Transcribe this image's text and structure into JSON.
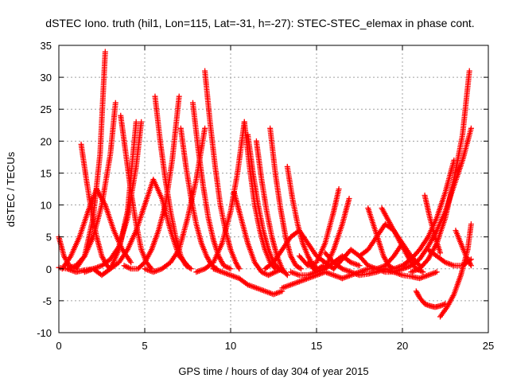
{
  "chart_data": {
    "type": "scatter",
    "title": "dSTEC Iono. truth (hil1, Lon=115, Lat=-31, h=-27): STEC-STEC_elemax in phase cont.",
    "xlabel": "GPS time / hours of day 304 of year 2015",
    "ylabel": "dSTEC  / TECUs",
    "xlim": [
      0,
      25
    ],
    "ylim": [
      -10,
      35
    ],
    "xticks": [
      0,
      5,
      10,
      15,
      20,
      25
    ],
    "yticks": [
      -10,
      -5,
      0,
      5,
      10,
      15,
      20,
      25,
      30,
      35
    ],
    "grid": true,
    "marker": "+",
    "color": "#ff0000",
    "series": [
      {
        "x": [
          0.0,
          0.3,
          0.6,
          1.0,
          1.5,
          2.0,
          2.4,
          2.7
        ],
        "y": [
          5.0,
          2.0,
          0.5,
          0.0,
          2.0,
          8.0,
          18.0,
          34.0
        ]
      },
      {
        "x": [
          0.0,
          0.5,
          1.0,
          1.5,
          2.0,
          2.5,
          3.0,
          3.3
        ],
        "y": [
          0.2,
          0.0,
          0.5,
          2.0,
          5.0,
          10.0,
          18.0,
          26.0
        ]
      },
      {
        "x": [
          0.2,
          0.7,
          1.2,
          1.7,
          2.2,
          2.7,
          3.2,
          3.7,
          4.2
        ],
        "y": [
          0.0,
          2.0,
          5.0,
          9.0,
          12.5,
          10.0,
          6.0,
          3.0,
          1.0
        ]
      },
      {
        "x": [
          1.3,
          1.6,
          1.9,
          2.2,
          2.5,
          2.8,
          3.0
        ],
        "y": [
          19.5,
          14.0,
          9.0,
          5.0,
          2.0,
          0.5,
          0.0
        ]
      },
      {
        "x": [
          0.5,
          1.0,
          1.5,
          2.0,
          2.5,
          3.0,
          3.5,
          4.0,
          4.5
        ],
        "y": [
          0.0,
          -0.5,
          -0.2,
          0.0,
          -1.0,
          0.0,
          3.0,
          9.0,
          23.0
        ]
      },
      {
        "x": [
          1.5,
          2.0,
          2.5,
          3.0,
          3.5,
          4.0,
          4.5,
          4.8
        ],
        "y": [
          -0.5,
          0.0,
          0.5,
          1.5,
          3.5,
          8.0,
          16.0,
          23.0
        ]
      },
      {
        "x": [
          3.6,
          3.9,
          4.2,
          4.5,
          4.8,
          5.1,
          5.4
        ],
        "y": [
          24.0,
          18.0,
          12.0,
          7.0,
          3.0,
          1.0,
          0.0
        ]
      },
      {
        "x": [
          3.8,
          4.2,
          4.6,
          5.0,
          5.4,
          5.8,
          6.2,
          6.6,
          7.0
        ],
        "y": [
          0.5,
          0.0,
          0.0,
          1.0,
          3.0,
          6.0,
          10.0,
          17.0,
          27.0
        ]
      },
      {
        "x": [
          3.0,
          3.5,
          4.0,
          4.5,
          5.0,
          5.5,
          6.0,
          6.5,
          7.0,
          7.5
        ],
        "y": [
          0.0,
          1.0,
          3.0,
          6.0,
          10.0,
          14.0,
          11.0,
          6.0,
          2.0,
          0.5
        ]
      },
      {
        "x": [
          5.6,
          5.9,
          6.2,
          6.5,
          6.8,
          7.1,
          7.4,
          7.7
        ],
        "y": [
          27.0,
          20.0,
          14.0,
          9.0,
          5.0,
          2.0,
          0.5,
          0.0
        ]
      },
      {
        "x": [
          5.0,
          5.5,
          6.0,
          6.5,
          7.0,
          7.5,
          8.0,
          8.5
        ],
        "y": [
          0.0,
          -0.5,
          0.0,
          1.0,
          3.0,
          8.0,
          14.0,
          22.0
        ]
      },
      {
        "x": [
          7.1,
          7.4,
          7.7,
          8.0,
          8.3,
          8.6,
          8.9,
          9.2
        ],
        "y": [
          22.0,
          16.0,
          11.0,
          7.0,
          4.0,
          2.0,
          0.5,
          0.0
        ]
      },
      {
        "x": [
          7.8,
          8.1,
          8.4,
          8.7,
          9.0,
          9.3,
          9.6,
          10.0
        ],
        "y": [
          26.0,
          19.0,
          13.0,
          8.0,
          4.5,
          2.0,
          0.5,
          0.0
        ]
      },
      {
        "x": [
          8.5,
          8.8,
          9.1,
          9.4,
          9.7,
          10.0,
          10.3,
          10.5
        ],
        "y": [
          31.0,
          23.0,
          16.0,
          10.0,
          6.0,
          3.0,
          1.0,
          0.0
        ]
      },
      {
        "x": [
          8.0,
          8.5,
          9.0,
          9.5,
          10.0,
          10.4,
          10.8
        ],
        "y": [
          -0.5,
          0.0,
          1.0,
          4.0,
          9.0,
          15.0,
          23.0
        ]
      },
      {
        "x": [
          10.8,
          11.1,
          11.4,
          11.7,
          12.0,
          12.3,
          12.6
        ],
        "y": [
          23.0,
          16.0,
          10.0,
          6.0,
          3.0,
          1.0,
          0.0
        ]
      },
      {
        "x": [
          10.2,
          10.6,
          11.0,
          11.4,
          11.8,
          12.2,
          12.6,
          13.0
        ],
        "y": [
          12.0,
          8.0,
          4.0,
          1.0,
          -0.5,
          -1.0,
          -0.5,
          0.0
        ]
      },
      {
        "x": [
          11.0,
          11.3,
          11.6,
          11.9,
          12.2,
          12.5,
          12.8,
          13.1
        ],
        "y": [
          21.0,
          15.0,
          10.0,
          6.0,
          3.0,
          1.0,
          0.0,
          -0.5
        ]
      },
      {
        "x": [
          9.0,
          9.5,
          10.0,
          10.5,
          11.0,
          11.5,
          12.0,
          12.5,
          13.0
        ],
        "y": [
          0.0,
          -0.5,
          -1.0,
          -1.5,
          -2.5,
          -3.0,
          -3.5,
          -4.0,
          -3.5
        ]
      },
      {
        "x": [
          12.3,
          12.6,
          12.9,
          13.2,
          13.5,
          13.8,
          14.1
        ],
        "y": [
          22.0,
          15.0,
          9.5,
          5.0,
          2.0,
          0.5,
          0.0
        ]
      },
      {
        "x": [
          11.5,
          11.8,
          12.1,
          12.4,
          12.7,
          13.0,
          13.3
        ],
        "y": [
          20.0,
          14.0,
          9.0,
          5.0,
          2.0,
          0.0,
          -1.0
        ]
      },
      {
        "x": [
          13.0,
          13.5,
          14.0,
          14.5,
          15.0,
          15.5,
          16.0,
          16.5
        ],
        "y": [
          -3.0,
          -2.5,
          -2.0,
          -1.5,
          -1.0,
          -0.5,
          -1.0,
          -1.5
        ]
      },
      {
        "x": [
          12.0,
          12.5,
          13.0,
          13.5,
          14.0,
          14.5,
          15.0,
          15.5,
          16.0
        ],
        "y": [
          0.0,
          1.0,
          3.0,
          5.0,
          6.0,
          4.0,
          2.0,
          1.0,
          0.0
        ]
      },
      {
        "x": [
          13.3,
          13.6,
          13.9,
          14.2,
          14.5,
          14.8,
          15.1,
          15.4
        ],
        "y": [
          16.0,
          11.0,
          7.0,
          4.0,
          2.0,
          0.5,
          0.0,
          0.5
        ]
      },
      {
        "x": [
          14.0,
          14.5,
          15.0,
          15.5,
          16.0,
          16.3
        ],
        "y": [
          2.0,
          0.5,
          1.0,
          4.0,
          9.0,
          12.5
        ]
      },
      {
        "x": [
          14.5,
          15.0,
          15.5,
          16.0,
          16.5,
          16.9
        ],
        "y": [
          1.0,
          -0.5,
          0.0,
          3.0,
          7.0,
          11.0
        ]
      },
      {
        "x": [
          13.5,
          14.0,
          14.5,
          15.0,
          15.5,
          16.0,
          16.5,
          17.0,
          17.5
        ],
        "y": [
          -0.5,
          -1.0,
          -1.0,
          -0.5,
          0.0,
          1.0,
          2.0,
          1.0,
          0.5
        ]
      },
      {
        "x": [
          15.5,
          16.0,
          16.5,
          17.0,
          17.5,
          18.0,
          18.5,
          19.0
        ],
        "y": [
          2.5,
          1.0,
          0.0,
          -0.5,
          -1.0,
          -0.8,
          -0.5,
          0.0
        ]
      },
      {
        "x": [
          16.0,
          16.5,
          17.0,
          17.5,
          18.0,
          18.5,
          19.0,
          19.5,
          20.0
        ],
        "y": [
          0.0,
          1.5,
          3.0,
          2.0,
          0.5,
          0.0,
          0.5,
          2.0,
          4.0
        ]
      },
      {
        "x": [
          16.5,
          17.0,
          17.5,
          18.0,
          18.5,
          19.0,
          19.5,
          20.0,
          20.5
        ],
        "y": [
          -1.5,
          -1.0,
          -0.5,
          0.0,
          0.0,
          -0.5,
          -0.5,
          0.0,
          0.5
        ]
      },
      {
        "x": [
          18.0,
          18.3,
          18.6,
          18.9,
          19.2,
          19.5
        ],
        "y": [
          9.5,
          7.0,
          4.5,
          2.0,
          0.5,
          0.0
        ]
      },
      {
        "x": [
          18.8,
          19.2,
          19.6,
          20.0,
          20.4,
          20.8,
          21.2
        ],
        "y": [
          9.5,
          7.5,
          5.5,
          3.5,
          1.5,
          0.0,
          -0.5
        ]
      },
      {
        "x": [
          17.5,
          18.0,
          18.5,
          19.0,
          19.5,
          20.0,
          20.5,
          21.0
        ],
        "y": [
          2.0,
          3.0,
          5.0,
          7.0,
          6.0,
          4.0,
          2.0,
          0.5
        ]
      },
      {
        "x": [
          19.0,
          19.5,
          20.0,
          20.5,
          21.0,
          21.5,
          22.0
        ],
        "y": [
          0.0,
          -0.5,
          -1.0,
          -1.2,
          -1.5,
          -1.0,
          -0.5
        ]
      },
      {
        "x": [
          19.5,
          20.0,
          20.5,
          21.0,
          21.5,
          22.0,
          22.5,
          23.0
        ],
        "y": [
          0.0,
          0.5,
          1.5,
          3.0,
          5.0,
          8.0,
          12.0,
          17.0
        ]
      },
      {
        "x": [
          20.0,
          20.5,
          21.0,
          21.5,
          22.0,
          22.5,
          23.0,
          23.5,
          24.0
        ],
        "y": [
          0.0,
          0.5,
          1.5,
          3.5,
          6.0,
          9.0,
          13.0,
          17.0,
          22.0
        ]
      },
      {
        "x": [
          20.5,
          21.0,
          21.5,
          22.0,
          22.5,
          23.0,
          23.5,
          23.9
        ],
        "y": [
          -0.5,
          0.0,
          1.5,
          4.0,
          8.0,
          14.0,
          21.0,
          31.0
        ]
      },
      {
        "x": [
          20.8,
          21.0,
          21.3,
          21.6,
          21.9,
          22.2,
          22.5
        ],
        "y": [
          -3.5,
          -4.5,
          -5.5,
          -5.8,
          -6.0,
          -5.8,
          -5.5
        ]
      },
      {
        "x": [
          21.3,
          21.6,
          21.9,
          22.2
        ],
        "y": [
          11.5,
          8.0,
          5.0,
          2.5
        ]
      },
      {
        "x": [
          22.2,
          22.6,
          23.0,
          23.4,
          23.8,
          24.0
        ],
        "y": [
          -7.5,
          -6.0,
          -4.0,
          -1.0,
          3.0,
          7.0
        ]
      },
      {
        "x": [
          23.1,
          23.4,
          23.7,
          24.0
        ],
        "y": [
          6.0,
          4.0,
          2.0,
          0.5
        ]
      },
      {
        "x": [
          21.5,
          22.0,
          22.5,
          23.0,
          23.5,
          24.0
        ],
        "y": [
          3.0,
          2.0,
          1.0,
          0.5,
          0.5,
          1.5
        ]
      }
    ]
  }
}
